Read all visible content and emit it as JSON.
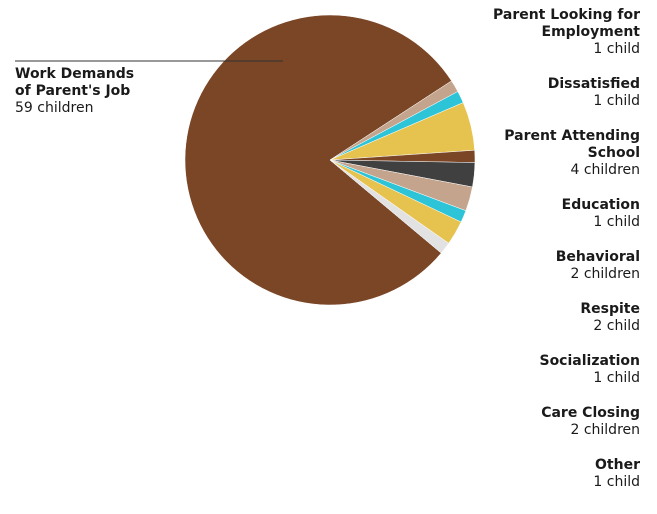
{
  "chart_data": {
    "type": "pie",
    "unit_label": "children",
    "slices": [
      {
        "label": "Work Demands\nof Parent's Job",
        "value": 59,
        "value_text": "59 children",
        "color": "#7a4626"
      },
      {
        "label": "Parent Looking for\nEmployment",
        "value": 1,
        "value_text": "1 child",
        "color": "#c4a48c"
      },
      {
        "label": "Dissatisfied",
        "value": 1,
        "value_text": "1 child",
        "color": "#2ec4d8"
      },
      {
        "label": "Parent Attending\nSchool",
        "value": 4,
        "value_text": "4 children",
        "color": "#e6c24e"
      },
      {
        "label": "Education",
        "value": 1,
        "value_text": "1 child",
        "color": "#7a4626"
      },
      {
        "label": "Behavioral",
        "value": 2,
        "value_text": "2 children",
        "color": "#404040"
      },
      {
        "label": "Respite",
        "value": 2,
        "value_text": "2 child",
        "color": "#c4a48c"
      },
      {
        "label": "Socialization",
        "value": 1,
        "value_text": "1 child",
        "color": "#2ec4d8"
      },
      {
        "label": "Care Closing",
        "value": 2,
        "value_text": "2 children",
        "color": "#e6c24e"
      },
      {
        "label": "Other",
        "value": 1,
        "value_text": "1 child",
        "color": "#e2e2e2"
      }
    ]
  }
}
